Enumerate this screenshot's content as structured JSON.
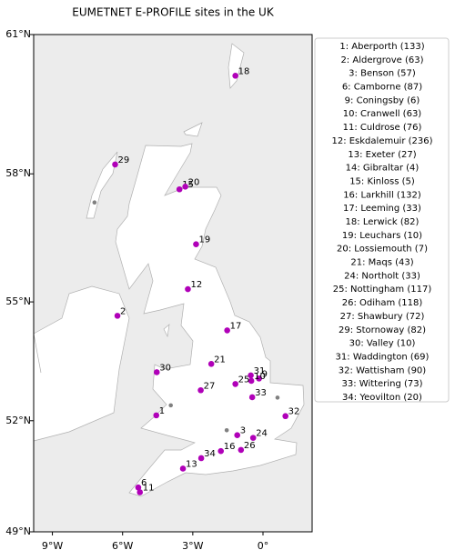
{
  "map": {
    "title": "EUMETNET E-PROFILE sites in the UK",
    "projection": "mercator",
    "xlim": [
      -9.8,
      2.1
    ],
    "ylim": [
      49,
      61
    ],
    "xticks": [
      {
        "value": -9,
        "label": "9°W"
      },
      {
        "value": -6,
        "label": "6°W"
      },
      {
        "value": -3,
        "label": "3°W"
      },
      {
        "value": 0,
        "label": "0°"
      }
    ],
    "yticks": [
      {
        "value": 49,
        "label": "49°N"
      },
      {
        "value": 52,
        "label": "52°N"
      },
      {
        "value": 55,
        "label": "55°N"
      },
      {
        "value": 58,
        "label": "58°N"
      },
      {
        "value": 61,
        "label": "61°N"
      }
    ],
    "marker_color": "#b000b8",
    "other_color": "#808080",
    "legend_position": "upper right",
    "sites": [
      {
        "id": 1,
        "label": "1: Aberporth  (133)",
        "lon": -4.56,
        "lat": 52.14
      },
      {
        "id": 2,
        "label": "2: Aldergrove  (63)",
        "lon": -6.22,
        "lat": 54.66
      },
      {
        "id": 3,
        "label": "3: Benson  (57)",
        "lon": -1.1,
        "lat": 51.62
      },
      {
        "id": 6,
        "label": "6: Camborne  (87)",
        "lon": -5.33,
        "lat": 50.22
      },
      {
        "id": 9,
        "label": "9: Coningsby  (6)",
        "lon": -0.17,
        "lat": 53.09
      },
      {
        "id": 10,
        "label": "10: Cranwell  (63)",
        "lon": -0.5,
        "lat": 53.03
      },
      {
        "id": 11,
        "label": "11: Culdrose  (76)",
        "lon": -5.26,
        "lat": 50.09
      },
      {
        "id": 12,
        "label": "12: Eskdalemuir  (236)",
        "lon": -3.21,
        "lat": 55.31
      },
      {
        "id": 13,
        "label": "13: Exeter  (27)",
        "lon": -3.42,
        "lat": 50.73
      },
      {
        "id": 14,
        "label": "14: Gibraltar  (4)"
      },
      {
        "id": 15,
        "label": "15: Kinloss  (5)",
        "lon": -3.57,
        "lat": 57.65
      },
      {
        "id": 16,
        "label": "16: Larkhill  (132)",
        "lon": -1.8,
        "lat": 51.2
      },
      {
        "id": 17,
        "label": "17: Leeming  (33)",
        "lon": -1.53,
        "lat": 54.3
      },
      {
        "id": 18,
        "label": "18: Lerwick  (82)",
        "lon": -1.18,
        "lat": 60.14
      },
      {
        "id": 19,
        "label": "19: Leuchars  (10)",
        "lon": -2.86,
        "lat": 56.38
      },
      {
        "id": 20,
        "label": "20: Lossiemouth  (7)",
        "lon": -3.32,
        "lat": 57.71
      },
      {
        "id": 21,
        "label": "21: Maqs  (43)",
        "lon": -2.21,
        "lat": 53.46
      },
      {
        "id": 24,
        "label": "24: Northolt  (33)",
        "lon": -0.42,
        "lat": 51.55
      },
      {
        "id": 25,
        "label": "25: Nottingham  (117)",
        "lon": -1.18,
        "lat": 52.95
      },
      {
        "id": 26,
        "label": "26: Odiham  (118)",
        "lon": -0.94,
        "lat": 51.23
      },
      {
        "id": 27,
        "label": "27: Shawbury  (72)",
        "lon": -2.66,
        "lat": 52.79
      },
      {
        "id": 29,
        "label": "29: Stornoway  (82)",
        "lon": -6.32,
        "lat": 58.21
      },
      {
        "id": 30,
        "label": "30: Valley  (10)",
        "lon": -4.54,
        "lat": 53.25
      },
      {
        "id": 31,
        "label": "31: Waddington  (69)",
        "lon": -0.52,
        "lat": 53.17
      },
      {
        "id": 32,
        "label": "32: Wattisham  (90)",
        "lon": 0.96,
        "lat": 52.12
      },
      {
        "id": 33,
        "label": "33: Wittering  (73)",
        "lon": -0.46,
        "lat": 52.61
      },
      {
        "id": 34,
        "label": "34: Yeovilton  (20)",
        "lon": -2.64,
        "lat": 51.01
      }
    ],
    "other_points": [
      {
        "lon": -7.2,
        "lat": 57.35
      },
      {
        "lon": -3.94,
        "lat": 52.4
      },
      {
        "lon": -1.55,
        "lat": 51.75
      },
      {
        "lon": 0.62,
        "lat": 52.6
      }
    ]
  }
}
